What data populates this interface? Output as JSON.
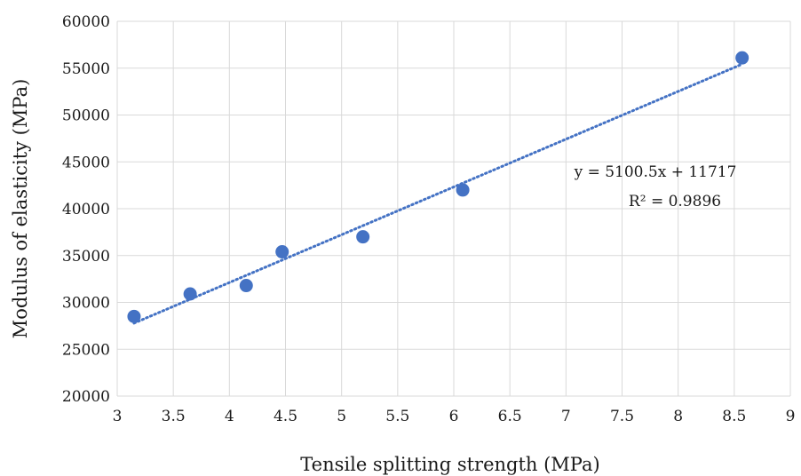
{
  "chart_data": {
    "type": "scatter",
    "xlabel": "Tensile splitting strength  (MPa)",
    "ylabel": "Modulus of elasticity (MPa)",
    "xlim": [
      3,
      9
    ],
    "ylim": [
      20000,
      60000
    ],
    "x_ticks": [
      3,
      3.5,
      4,
      4.5,
      5,
      5.5,
      6,
      6.5,
      7,
      7.5,
      8,
      8.5,
      9
    ],
    "x_tick_labels": [
      "3",
      "3.5",
      "4",
      "4.5",
      "5",
      "5.5",
      "6",
      "6.5",
      "7",
      "7.5",
      "8",
      "8.5",
      "9"
    ],
    "y_ticks": [
      20000,
      25000,
      30000,
      35000,
      40000,
      45000,
      50000,
      55000,
      60000
    ],
    "y_tick_labels": [
      "20000",
      "25000",
      "30000",
      "35000",
      "40000",
      "45000",
      "50000",
      "55000",
      "60000"
    ],
    "grid": true,
    "series": [
      {
        "color": "#4472C4",
        "x": [
          3.15,
          3.65,
          4.15,
          4.47,
          5.19,
          6.08,
          8.57
        ],
        "y": [
          28500,
          30900,
          31800,
          35400,
          37000,
          42000,
          56100
        ]
      }
    ],
    "trendline": {
      "type": "linear",
      "slope": 5100.5,
      "intercept": 11717,
      "x_range": [
        3.15,
        8.57
      ],
      "color": "#4472C4",
      "style": "dotted",
      "equation": "y = 5100.5x + 11717",
      "r_squared": "R² = 0.9896"
    }
  }
}
